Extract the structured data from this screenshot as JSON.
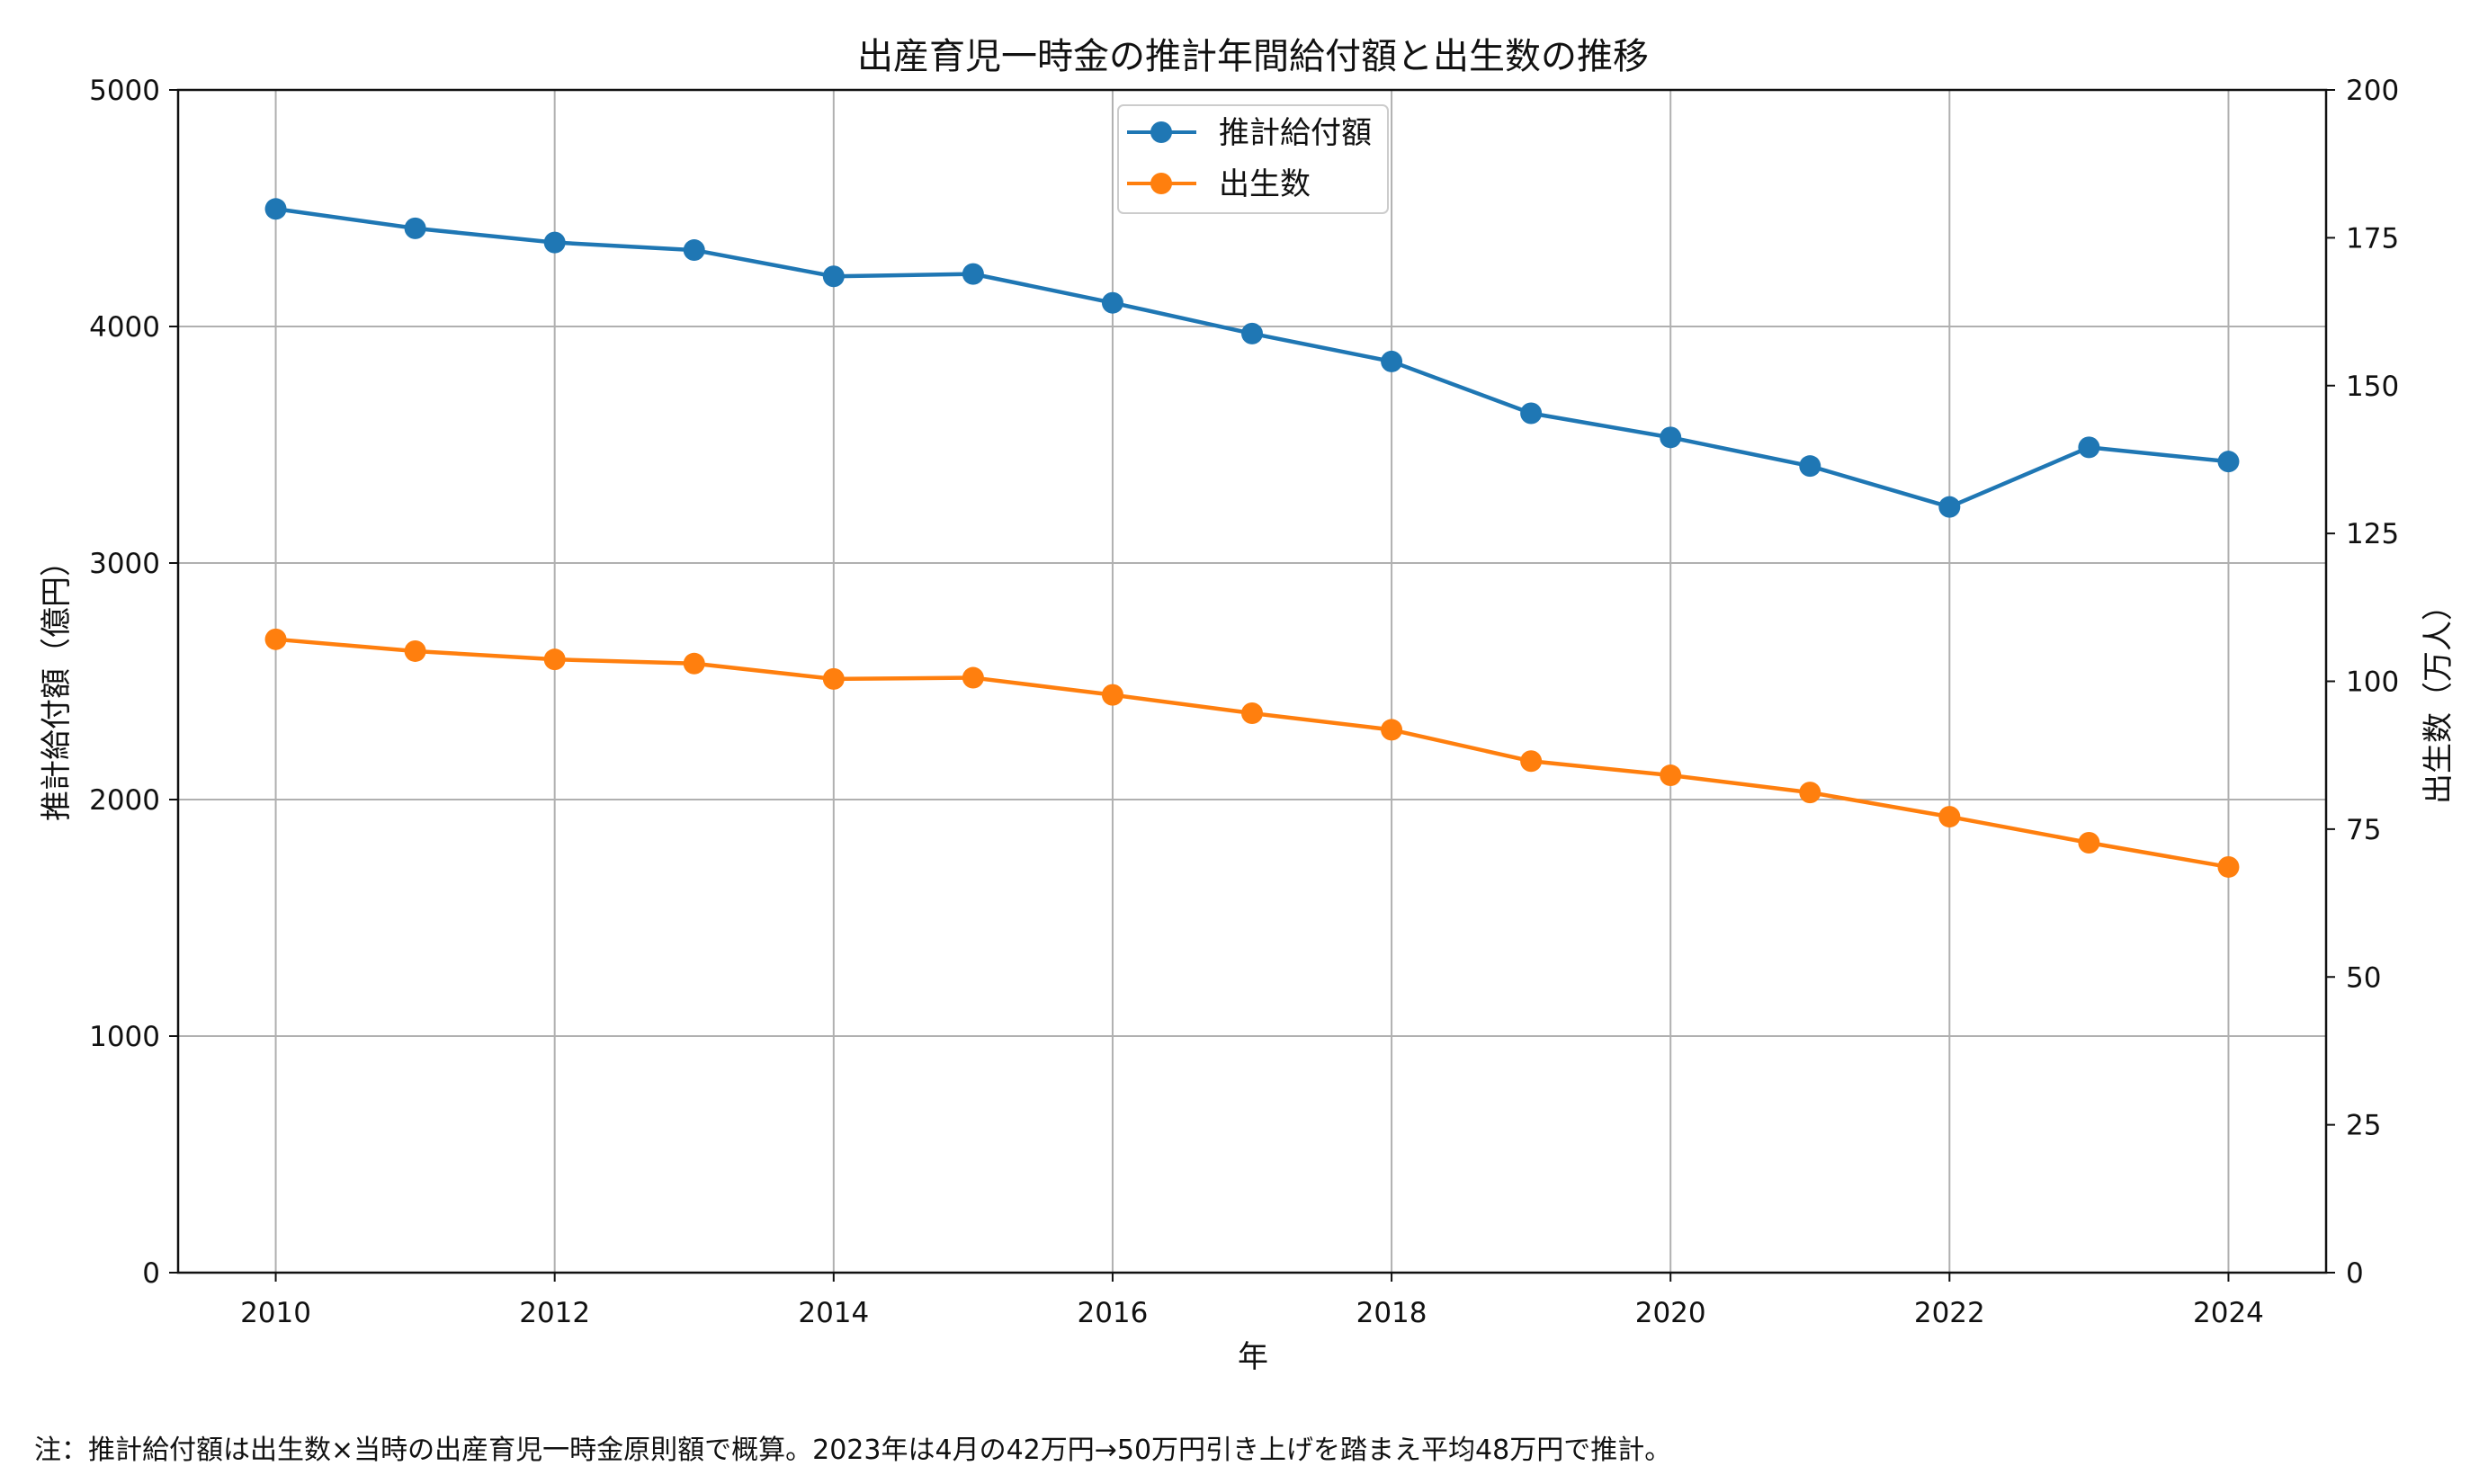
{
  "chart_data": {
    "type": "line",
    "title": "出産育児一時金の推計年間給付額と出生数の推移",
    "xlabel": "年",
    "ylabel_left": "推計給付額（億円）",
    "ylabel_right": "出生数（万人）",
    "x": [
      2010,
      2011,
      2012,
      2013,
      2014,
      2015,
      2016,
      2017,
      2018,
      2019,
      2020,
      2021,
      2022,
      2023,
      2024
    ],
    "x_ticks": [
      "2010",
      "2012",
      "2014",
      "2016",
      "2018",
      "2020",
      "2022",
      "2024"
    ],
    "xlim": [
      2009.3,
      2024.7
    ],
    "y_left_ticks": [
      "0",
      "1000",
      "2000",
      "3000",
      "4000",
      "5000"
    ],
    "y_right_ticks": [
      "0",
      "25",
      "50",
      "75",
      "100",
      "125",
      "150",
      "175",
      "200"
    ],
    "ylim_left": [
      0,
      5000
    ],
    "ylim_right": [
      0,
      200
    ],
    "grid": true,
    "legend_position": "top-center",
    "series": [
      {
        "name": "推計給付額",
        "axis": "left",
        "color": "#1f77b4",
        "values": [
          4497,
          4415,
          4355,
          4323,
          4212,
          4222,
          4100,
          3970,
          3852,
          3633,
          3531,
          3410,
          3237,
          3489,
          3429
        ]
      },
      {
        "name": "出生数",
        "axis": "right",
        "color": "#ff7f0e",
        "values": [
          107.1,
          105.1,
          103.7,
          103.0,
          100.4,
          100.6,
          97.7,
          94.6,
          91.8,
          86.5,
          84.1,
          81.2,
          77.1,
          72.7,
          68.6
        ]
      }
    ],
    "note": "注：推計給付額は出生数×当時の出産育児一時金原則額で概算。2023年は4月の42万円→50万円引き上げを踏まえ平均48万円で推計。"
  }
}
